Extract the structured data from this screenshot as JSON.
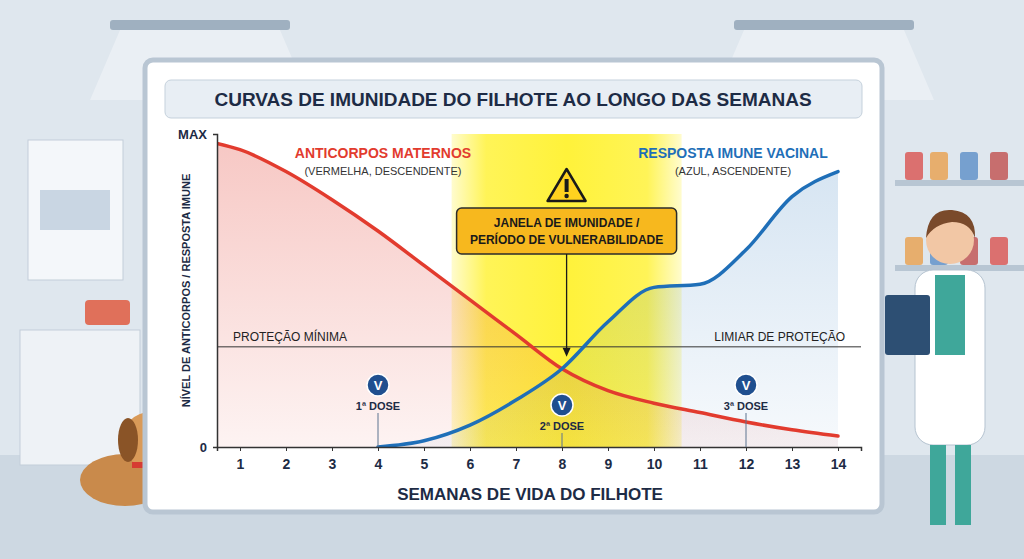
{
  "chart_data": {
    "type": "line",
    "title": "CURVAS DE IMUNIDADE DO FILHOTE AO LONGO DAS SEMANAS",
    "x_label": "SEMANAS DE VIDA DO FILHOTE",
    "y_label": "NÍVEL DE ANTICORPOS / RESPOSTA IMUNE",
    "xlim": [
      0.5,
      14.5
    ],
    "xticks": [
      1,
      2,
      3,
      4,
      5,
      6,
      7,
      8,
      9,
      10,
      11,
      12,
      13,
      14
    ],
    "ylim": [
      0,
      100
    ],
    "yticks": [
      0,
      {
        "value": 100,
        "label": "MAX"
      }
    ],
    "grid": false,
    "series": [
      {
        "name": "ANTICORPOS MATERNOS",
        "description": "(VERMELHA, DESCENDENTE)",
        "color": "#e23b2e",
        "line_style": "solid",
        "x": [
          0.5,
          1,
          2,
          3,
          4,
          5,
          6,
          7,
          8,
          9,
          10,
          11,
          12,
          13,
          14
        ],
        "values": [
          97,
          95,
          88,
          79,
          69,
          58,
          47,
          36,
          25,
          18,
          14,
          11,
          8,
          5.5,
          3.5
        ]
      },
      {
        "name": "RESPOSTA IMUNE VACINAL",
        "description": "(AZUL, ASCENDENTE)",
        "color": "#1f6fb8",
        "line_style": "solid",
        "x": [
          4,
          5,
          6,
          7,
          8,
          9,
          10,
          11,
          12,
          13,
          14
        ],
        "values": [
          0,
          2,
          7,
          15,
          25,
          40,
          51,
          52,
          63,
          80,
          88
        ]
      }
    ],
    "threshold": {
      "value": 32,
      "labels": [
        "PROTEÇÃO MÍNIMA",
        "LIMIAR DE PROTEÇÃO"
      ]
    },
    "window": {
      "start": 5.6,
      "end": 10.6,
      "label": [
        "JANELA DE IMUNIDADE /",
        "PERÍODO DE VULNERABILIDADE"
      ]
    },
    "dose_symbol": "V",
    "doses": [
      {
        "week": 4,
        "label": "1ª DOSE"
      },
      {
        "week": 8,
        "label": "2ª DOSE"
      },
      {
        "week": 12,
        "label": "3ª DOSE"
      }
    ]
  }
}
